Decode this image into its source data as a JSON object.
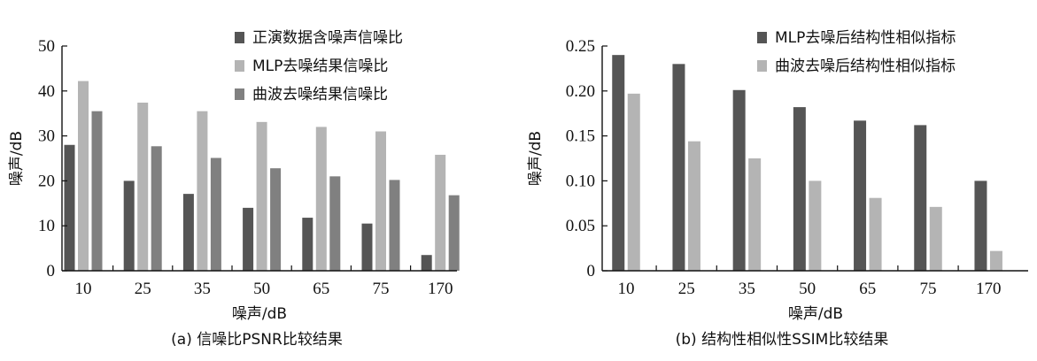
{
  "chart_data": [
    {
      "type": "bar",
      "caption": "(a) 信噪比PSNR比较结果",
      "xlabel": "噪声/dB",
      "ylabel": "噪声/dB",
      "categories": [
        "10",
        "25",
        "35",
        "50",
        "65",
        "75",
        "170"
      ],
      "ylim": [
        0,
        50
      ],
      "yticks": [
        "0",
        "10",
        "20",
        "30",
        "40",
        "50"
      ],
      "legend_position": "top-right",
      "grid": false,
      "series": [
        {
          "name": "正演数据含噪声信噪比",
          "color": "#555555",
          "values": [
            28.0,
            20.0,
            17.1,
            14.0,
            11.8,
            10.5,
            3.5
          ]
        },
        {
          "name": "MLP去噪结果信噪比",
          "color": "#b4b4b4",
          "values": [
            42.2,
            37.4,
            35.5,
            33.1,
            32.0,
            31.0,
            25.8
          ]
        },
        {
          "name": "曲波去噪结果信噪比",
          "color": "#808080",
          "values": [
            35.5,
            27.7,
            25.1,
            22.8,
            21.0,
            20.2,
            16.8
          ]
        }
      ]
    },
    {
      "type": "bar",
      "caption": "(b) 结构性相似性SSIM比较结果",
      "xlabel": "噪声/dB",
      "ylabel": "噪声/dB",
      "categories": [
        "10",
        "25",
        "35",
        "50",
        "65",
        "75",
        "170"
      ],
      "ylim": [
        0,
        0.25
      ],
      "yticks": [
        "0",
        "0.05",
        "0.10",
        "0.15",
        "0.20",
        "0.25"
      ],
      "legend_position": "top-right",
      "grid": false,
      "series": [
        {
          "name": "MLP去噪后结构性相似指标",
          "color": "#555555",
          "values": [
            0.24,
            0.23,
            0.201,
            0.182,
            0.167,
            0.162,
            0.1
          ]
        },
        {
          "name": "曲波去噪后结构性相似指标",
          "color": "#b4b4b4",
          "values": [
            0.197,
            0.144,
            0.125,
            0.1,
            0.081,
            0.071,
            0.022
          ]
        }
      ]
    }
  ]
}
